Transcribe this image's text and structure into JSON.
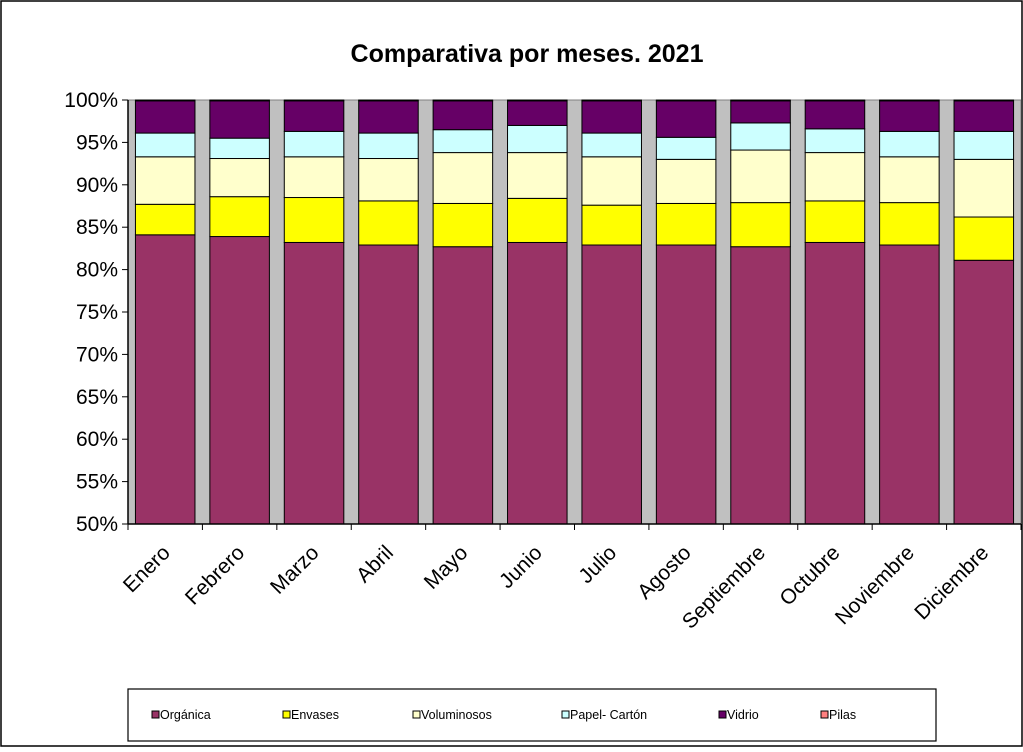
{
  "chart_data": {
    "type": "bar",
    "stacked": "percent",
    "title": "Comparativa por meses. 2021",
    "categories": [
      "Enero",
      "Febrero",
      "Marzo",
      "Abril",
      "Mayo",
      "Junio",
      "Julio",
      "Agosto",
      "Septiembre",
      "Octubre",
      "Noviembre",
      "Diciembre"
    ],
    "ylim": [
      50,
      100
    ],
    "y_ticks": [
      "50%",
      "55%",
      "60%",
      "65%",
      "70%",
      "75%",
      "80%",
      "85%",
      "90%",
      "95%",
      "100%"
    ],
    "grid": false,
    "legend_position": "bottom",
    "series": [
      {
        "name": "Orgánica",
        "color": "#993366",
        "values": [
          84.1,
          83.9,
          83.2,
          82.9,
          82.7,
          83.2,
          82.9,
          82.9,
          82.7,
          83.2,
          82.9,
          81.1
        ]
      },
      {
        "name": "Envases",
        "color": "#ffff00",
        "values": [
          3.6,
          4.7,
          5.3,
          5.2,
          5.1,
          5.2,
          4.7,
          4.9,
          5.2,
          4.9,
          5.0,
          5.1
        ]
      },
      {
        "name": "Voluminosos",
        "color": "#ffffcc",
        "values": [
          5.6,
          4.5,
          4.8,
          5.0,
          6.0,
          5.4,
          5.7,
          5.2,
          6.2,
          5.7,
          5.4,
          6.8
        ]
      },
      {
        "name": "Papel- Cartón",
        "color": "#ccffff",
        "values": [
          2.8,
          2.4,
          3.0,
          3.0,
          2.7,
          3.2,
          2.8,
          2.6,
          3.2,
          2.8,
          3.0,
          3.3
        ]
      },
      {
        "name": "Vidrio",
        "color": "#660066",
        "values": [
          3.8,
          4.4,
          3.6,
          3.8,
          3.4,
          2.9,
          3.8,
          4.3,
          2.6,
          3.3,
          3.6,
          3.6
        ]
      },
      {
        "name": "Pilas",
        "color": "#ff8080",
        "values": [
          0.1,
          0.1,
          0.1,
          0.1,
          0.1,
          0.1,
          0.1,
          0.1,
          0.1,
          0.1,
          0.1,
          0.1
        ]
      }
    ]
  }
}
